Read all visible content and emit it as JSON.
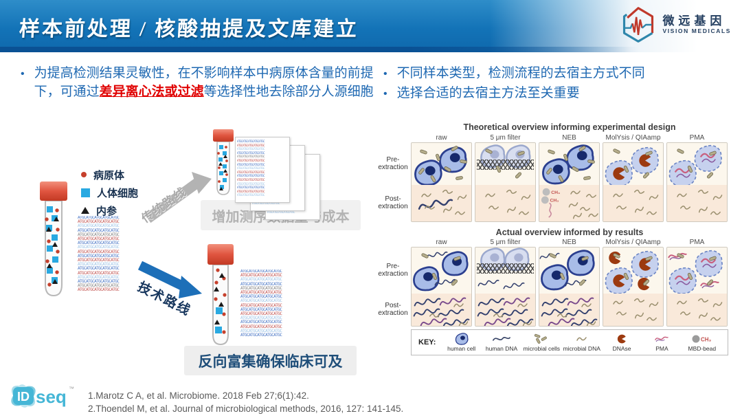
{
  "header": {
    "title": "样本前处理 / 核酸抽提及文库建立"
  },
  "logo": {
    "cn": "微远基因",
    "en": "VISION MEDICALS"
  },
  "intro": {
    "left_pre": "为提高检测结果灵敏性，在不影响样本中病原体含量的前提下，可通过",
    "left_highlight": "差异离心法或过滤",
    "left_post": "等选择性地去除部分人源细胞",
    "right_items": [
      "不同样本类型，检测流程的去宿主方式不同",
      "选择合适的去宿主方法至关重要"
    ]
  },
  "diagram": {
    "legend": [
      {
        "marker": "dot",
        "label": "病原体",
        "color": "#c6402c"
      },
      {
        "marker": "square",
        "label": "人体细胞",
        "color": "#29a9e1"
      },
      {
        "marker": "triangle",
        "label": "内参",
        "color": "#1a1a1a"
      }
    ],
    "arrow_traditional": "传统路线",
    "arrow_technical": "技术路线",
    "box_traditional": "增加测序数据量与成本",
    "box_technical": "反向富集确保临床可及",
    "seq_line": "ATGCATGCATGCATGCATGC"
  },
  "figure": {
    "columns": [
      "raw",
      "5 μm filter",
      "NEB",
      "MolYsis / QIAamp",
      "PMA"
    ],
    "row_labels": [
      "Pre-extraction",
      "Post-extraction"
    ],
    "panels": [
      {
        "title": "Theoretical overview informing experimental design",
        "rows": [
          [
            [
              "hc 44 8 44",
              "hc 2 40 44",
              "mb"
            ],
            [
              "fc 6 4 40",
              "fc 48 4 40",
              "mesh 40",
              "mbf"
            ],
            [
              "hc 42 4 44",
              "hc 2 36 44",
              "mb"
            ],
            [
              "ld 44 8 46",
              "ld 0 40 46",
              "mbf"
            ],
            [
              "lp 42 4 46",
              "lp 0 40 46",
              "mbf"
            ]
          ],
          [
            [
              "hd 10 30 52 n",
              "mds"
            ],
            [
              "mds"
            ],
            [
              "nb 2 4 36",
              "mdsr"
            ],
            [
              "mds"
            ],
            [
              "mds"
            ]
          ]
        ]
      },
      {
        "title": "Actual overview informed by results",
        "rows": [
          [
            [
              "hd 24 4 32 n",
              "hc 48 8 42",
              "hc 0 40 42",
              "hd 38 64 32 n",
              "mbf"
            ],
            [
              "fc 6 0 40",
              "fc 46 0 40",
              "mesh 34",
              "hd 4 66 32 n",
              "hd 46 72 32 n"
            ],
            [
              "hd 0 8 30 n",
              "hc 44 4 44",
              "hc 0 36 44",
              "hd 42 66 32 n",
              "mbf"
            ],
            [
              "dn 8 8 20",
              "ld 44 6 46",
              "ld 0 42 46",
              "dn 56 64 20",
              "mbf"
            ],
            [
              "pm 0 4 30",
              "lp 44 4 46",
              "lp 0 42 46",
              "pm 54 66 30",
              "mbf"
            ]
          ],
          [
            [
              "hdm"
            ],
            [
              "hdm"
            ],
            [
              "hdm"
            ],
            [
              "mds"
            ],
            [
              "mds"
            ]
          ]
        ]
      }
    ],
    "key": {
      "label": "KEY:",
      "items": [
        {
          "icon": "human-cell",
          "label": "human cell"
        },
        {
          "icon": "human-dna",
          "label": "human DNA"
        },
        {
          "icon": "microbial-cells",
          "label": "microbial cells"
        },
        {
          "icon": "microbial-dna",
          "label": "microbial DNA"
        },
        {
          "icon": "dnase",
          "label": "DNAse"
        },
        {
          "icon": "pma",
          "label": "PMA"
        },
        {
          "icon": "mbd-bead",
          "label": "MBD-bead"
        }
      ]
    }
  },
  "footer": {
    "brand": "IDseq",
    "brand_tm": "™",
    "references": [
      "1.Marotz C A, et al. Microbiome. 2018 Feb 27;6(1):42.",
      "2.Thoendel M, et al. Journal of microbiological methods, 2016, 127: 141-145."
    ]
  },
  "colors": {
    "header_blue": "#1373b7",
    "body_text_blue": "#1e68b2",
    "highlight_red": "#e00000",
    "pathogen_red": "#c6402c",
    "human_cell_blue": "#29a9e1",
    "pre_cell_bg": "#fcf7ed",
    "post_cell_bg": "#f9e9da"
  }
}
